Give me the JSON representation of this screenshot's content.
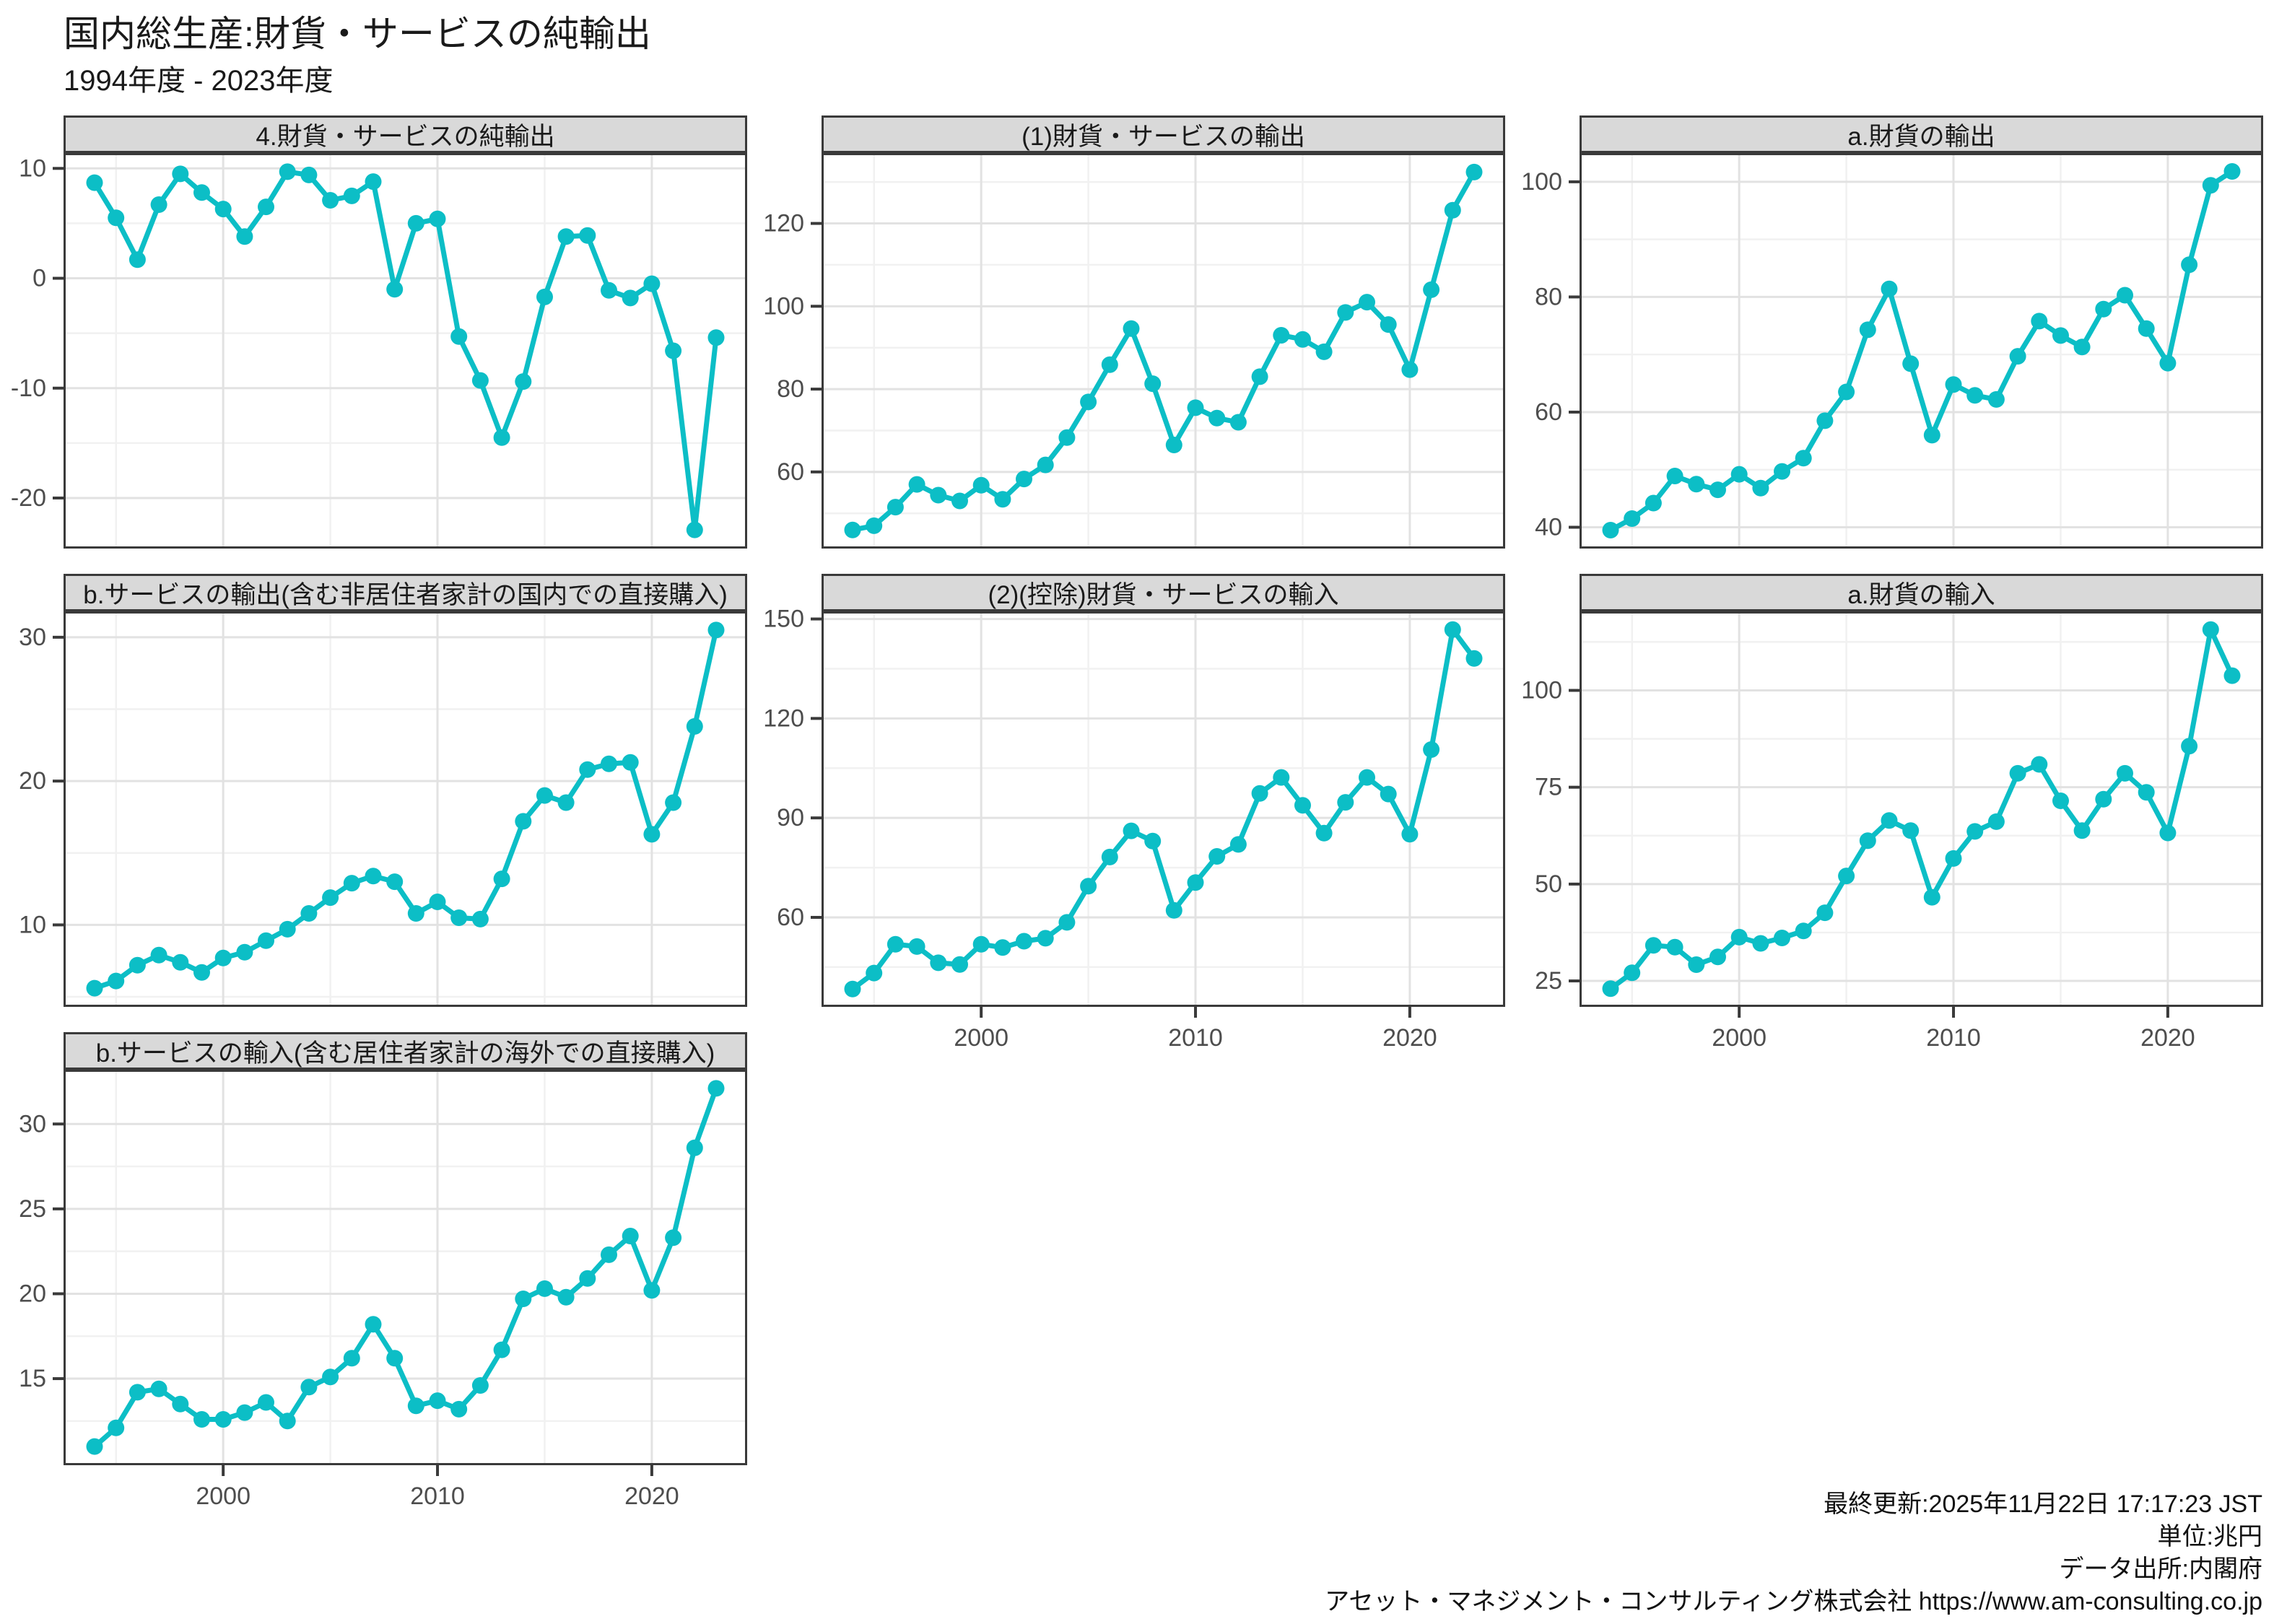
{
  "title": "国内総生産:財貨・サービスの純輸出",
  "subtitle": "1994年度 - 2023年度",
  "colors": {
    "accent": "#0cbec6",
    "strip_bg": "#d9d9d9",
    "panel_border": "#3a3a3a",
    "grid_major": "#e2e2e2",
    "grid_minor": "#f1f1f1",
    "axis_text": "#4d4d4d",
    "text": "#1a1a1a"
  },
  "footer": {
    "lines": [
      "最終更新:2025年11月22日 17:17:23 JST",
      "単位:兆円",
      "データ出所:内閣府",
      "アセット・マネジメント・コンサルティング株式会社 https://www.am-consulting.co.jp"
    ]
  },
  "chart_data": {
    "type": "line",
    "unit": "兆円",
    "legend": "none",
    "grid": "on",
    "years": [
      1994,
      1995,
      1996,
      1997,
      1998,
      1999,
      2000,
      2001,
      2002,
      2003,
      2004,
      2005,
      2006,
      2007,
      2008,
      2009,
      2010,
      2011,
      2012,
      2013,
      2014,
      2015,
      2016,
      2017,
      2018,
      2019,
      2020,
      2021,
      2022,
      2023
    ],
    "x_axis": {
      "range": [
        1992.55,
        2024.45
      ],
      "major_ticks": [
        2000,
        2010,
        2020
      ],
      "minor_ticks": [
        1995,
        2005,
        2015
      ]
    },
    "panels": [
      {
        "title": "4.財貨・サービスの純輸出",
        "values": [
          8.7,
          5.5,
          1.7,
          6.7,
          9.5,
          7.8,
          6.3,
          3.8,
          6.5,
          9.7,
          9.4,
          7.1,
          7.5,
          8.8,
          -1.0,
          5.0,
          5.4,
          -5.3,
          -9.3,
          -14.5,
          -9.4,
          -1.7,
          3.8,
          3.9,
          -1.1,
          -1.8,
          -0.5,
          -6.6,
          -22.9,
          -5.4
        ],
        "ylim": [
          -24.6,
          11.4
        ],
        "yticks": [
          10,
          0,
          -10,
          -20
        ],
        "yminor": [
          5,
          -5,
          -15
        ],
        "show_x_labels": false
      },
      {
        "title": "(1)財貨・サービスの輸出",
        "values": [
          46.0,
          47.0,
          51.5,
          57.0,
          54.4,
          53.0,
          56.8,
          53.4,
          58.3,
          61.7,
          68.3,
          76.9,
          85.9,
          94.6,
          81.3,
          66.5,
          75.5,
          73.0,
          72.0,
          83.0,
          93.0,
          92.0,
          89.0,
          98.5,
          101.0,
          95.6,
          84.7,
          104.0,
          123.2,
          132.4
        ],
        "ylim": [
          41.5,
          137.0
        ],
        "yticks": [
          120,
          100,
          80,
          60
        ],
        "yminor": [
          130,
          110,
          90,
          70,
          50
        ],
        "show_x_labels": false
      },
      {
        "title": "a.財貨の輸出",
        "values": [
          39.5,
          41.5,
          44.2,
          48.9,
          47.5,
          46.5,
          49.2,
          46.8,
          49.7,
          52.0,
          58.5,
          63.5,
          74.3,
          81.4,
          68.4,
          56.0,
          64.8,
          62.9,
          62.2,
          69.7,
          75.8,
          73.3,
          71.3,
          77.9,
          80.3,
          74.5,
          68.5,
          85.6,
          99.4,
          101.8
        ],
        "ylim": [
          36.3,
          105.0
        ],
        "yticks": [
          100,
          80,
          60,
          40
        ],
        "yminor": [
          90,
          70,
          50
        ],
        "show_x_labels": false
      },
      {
        "title": "b.サービスの輸出(含む非居住者家計の国内での直接購入)",
        "values": [
          5.6,
          6.1,
          7.2,
          7.9,
          7.4,
          6.7,
          7.7,
          8.1,
          8.9,
          9.7,
          10.8,
          11.9,
          12.9,
          13.4,
          13.0,
          10.8,
          11.6,
          10.5,
          10.4,
          13.2,
          17.2,
          19.0,
          18.5,
          20.8,
          21.2,
          21.3,
          16.3,
          18.5,
          23.8,
          30.5
        ],
        "ylim": [
          4.3,
          31.8
        ],
        "yticks": [
          30,
          20,
          10
        ],
        "yminor": [
          25,
          15,
          5
        ],
        "show_x_labels": false
      },
      {
        "title": "(2)(控除)財貨・サービスの輸入",
        "values": [
          38.4,
          43.2,
          51.9,
          51.2,
          46.3,
          45.8,
          51.9,
          50.9,
          52.8,
          53.7,
          58.5,
          69.4,
          78.2,
          86.1,
          83.0,
          62.1,
          70.5,
          78.4,
          82.0,
          97.4,
          102.2,
          93.8,
          85.4,
          94.7,
          102.2,
          97.2,
          85.1,
          110.6,
          146.8,
          138.1
        ],
        "ylim": [
          33.0,
          152.3
        ],
        "yticks": [
          150,
          120,
          90,
          60
        ],
        "yminor": [
          135,
          105,
          75,
          45
        ],
        "show_x_labels": true
      },
      {
        "title": "a.財貨の輸入",
        "values": [
          23.0,
          27.1,
          34.2,
          33.7,
          29.2,
          31.2,
          36.3,
          34.7,
          36.1,
          37.9,
          42.6,
          52.1,
          61.2,
          66.4,
          63.8,
          46.6,
          56.6,
          63.6,
          66.1,
          78.6,
          80.9,
          71.5,
          63.8,
          71.9,
          78.6,
          73.7,
          63.2,
          85.6,
          115.7,
          103.8
        ],
        "ylim": [
          18.3,
          120.4
        ],
        "yticks": [
          100,
          75,
          50,
          25
        ],
        "yminor": [
          112.5,
          87.5,
          62.5,
          37.5
        ],
        "show_x_labels": true
      },
      {
        "title": "b.サービスの輸入(含む居住者家計の海外での直接購入)",
        "values": [
          11.0,
          12.1,
          14.2,
          14.4,
          13.5,
          12.6,
          12.6,
          13.0,
          13.6,
          12.5,
          14.5,
          15.1,
          16.2,
          18.2,
          16.2,
          13.4,
          13.7,
          13.2,
          14.6,
          16.7,
          19.7,
          20.3,
          19.8,
          20.9,
          22.3,
          23.4,
          20.2,
          23.3,
          28.6,
          32.1
        ],
        "ylim": [
          9.9,
          33.2
        ],
        "yticks": [
          30,
          25,
          20,
          15
        ],
        "yminor": [
          27.5,
          22.5,
          17.5,
          12.5
        ],
        "show_x_labels": true
      }
    ]
  }
}
